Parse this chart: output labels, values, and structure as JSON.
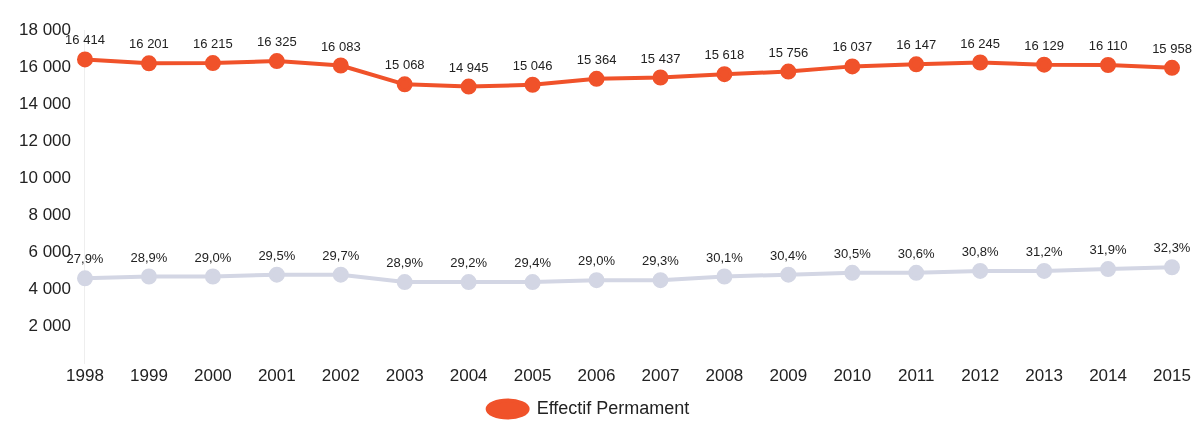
{
  "chart_data": {
    "type": "line",
    "categories": [
      "1998",
      "1999",
      "2000",
      "2001",
      "2002",
      "2003",
      "2004",
      "2005",
      "2006",
      "2007",
      "2008",
      "2009",
      "2010",
      "2011",
      "2012",
      "2013",
      "2014",
      "2015"
    ],
    "series": [
      {
        "name": "Effectif Permament",
        "color": "#f0522a",
        "values": [
          16414,
          16201,
          16215,
          16325,
          16083,
          15068,
          14945,
          15046,
          15364,
          15437,
          15618,
          15756,
          16037,
          16147,
          16245,
          16129,
          16110,
          15958
        ],
        "value_labels": [
          "16 414",
          "16 201",
          "16 215",
          "16 325",
          "16 083",
          "15 068",
          "14 945",
          "15 046",
          "15 364",
          "15 437",
          "15 618",
          "15 756",
          "16 037",
          "16 147",
          "16 245",
          "16 129",
          "16 110",
          "15 958"
        ]
      },
      {
        "color": "#d3d6e4",
        "values": [
          4600,
          4700,
          4700,
          4800,
          4800,
          4400,
          4400,
          4400,
          4500,
          4500,
          4700,
          4800,
          4900,
          4900,
          5000,
          5000,
          5100,
          5200
        ]
      }
    ],
    "annotations": [
      {
        "text": "27,9%",
        "x": "1998",
        "y": 4600
      },
      {
        "text": "28,9%",
        "x": "1999",
        "y": 4700
      },
      {
        "text": "29,0%",
        "x": "2000",
        "y": 4700
      },
      {
        "text": "29,5%",
        "x": "2001",
        "y": 4800
      },
      {
        "text": "29,7%",
        "x": "2002",
        "y": 4800
      },
      {
        "text": "28,9%",
        "x": "2003",
        "y": 4400
      },
      {
        "text": "29,2%",
        "x": "2004",
        "y": 4400
      },
      {
        "text": "29,4%",
        "x": "2005",
        "y": 4400
      },
      {
        "text": "29,0%",
        "x": "2006",
        "y": 4500
      },
      {
        "text": "29,3%",
        "x": "2007",
        "y": 4500
      },
      {
        "text": "30,1%",
        "x": "2008",
        "y": 4700
      },
      {
        "text": "30,4%",
        "x": "2009",
        "y": 4800
      },
      {
        "text": "30,5%",
        "x": "2010",
        "y": 4900
      },
      {
        "text": "30,6%",
        "x": "2011",
        "y": 4900
      },
      {
        "text": "30,8%",
        "x": "2012",
        "y": 5000
      },
      {
        "text": "31,2%",
        "x": "2013",
        "y": 5000
      },
      {
        "text": "31,9%",
        "x": "2014",
        "y": 5100
      },
      {
        "text": "32,3%",
        "x": "2015",
        "y": 5200
      }
    ],
    "ylim": [
      0,
      18000
    ],
    "yticks": [
      {
        "value": 2000,
        "label": "2 000"
      },
      {
        "value": 4000,
        "label": "4 000"
      },
      {
        "value": 6000,
        "label": "6 000"
      },
      {
        "value": 8000,
        "label": "8 000"
      },
      {
        "value": 10000,
        "label": "10 000"
      },
      {
        "value": 12000,
        "label": "12 000"
      },
      {
        "value": 14000,
        "label": "14 000"
      },
      {
        "value": 16000,
        "label": "16 000"
      },
      {
        "value": 18000,
        "label": "18 000"
      }
    ],
    "grid": false,
    "legend": "bottom",
    "marker": "circle",
    "line_style": "solid"
  }
}
